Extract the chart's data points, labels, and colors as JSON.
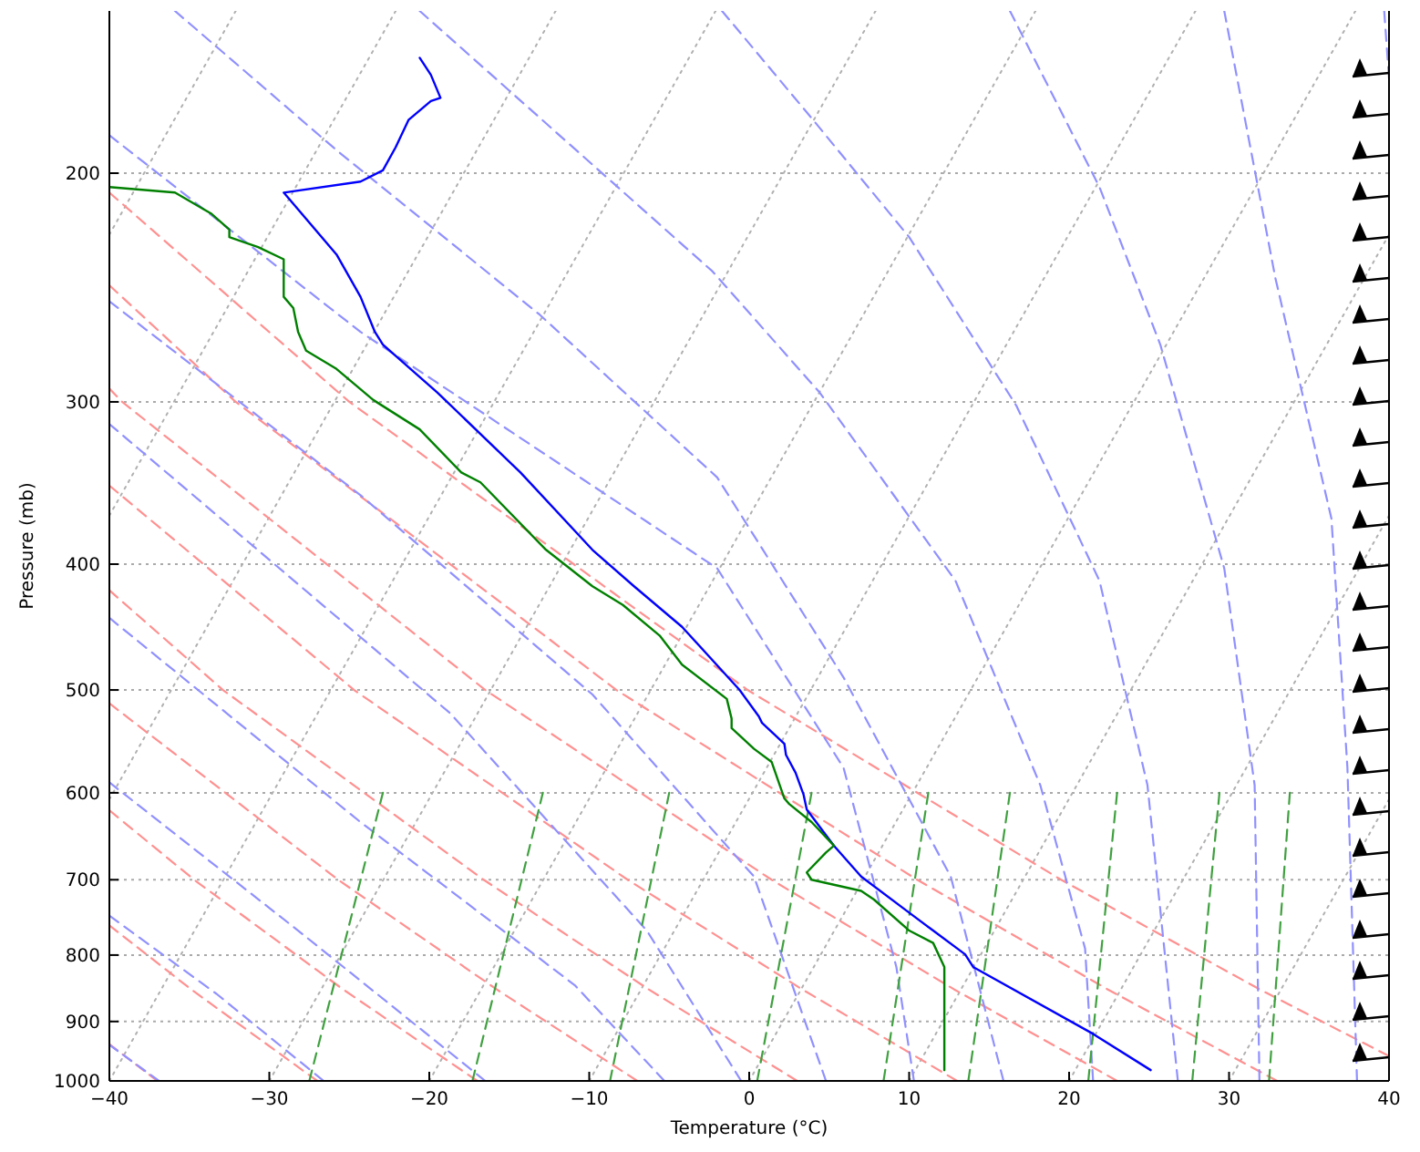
{
  "chart_data": {
    "type": "line",
    "xlabel": "Temperature (°C)",
    "ylabel": "Pressure (mb)",
    "log": "y",
    "grid": "y",
    "xlim": [
      -40,
      40
    ],
    "ylim": [
      1000,
      150
    ],
    "xticks": [
      {
        "value": -40,
        "label": "−40"
      },
      {
        "value": -30,
        "label": "−30"
      },
      {
        "value": -20,
        "label": "−20"
      },
      {
        "value": -10,
        "label": "−10"
      },
      0,
      10,
      20,
      30,
      40
    ],
    "yticks": [
      1000,
      900,
      800,
      700,
      600,
      500,
      400,
      300,
      200
    ],
    "series": [
      {
        "color": "#b0b0b0",
        "line_style": "dotted",
        "x": [
          -40,
          -32.1
        ],
        "values": [
          223,
          150
        ]
      },
      {
        "color": "#b0b0b0",
        "line_style": "dotted",
        "x": [
          -40,
          -22.1
        ],
        "values": [
          367,
          150
        ]
      },
      {
        "color": "#b0b0b0",
        "line_style": "dotted",
        "x": [
          -40,
          -12.1
        ],
        "values": [
          607,
          150
        ]
      },
      {
        "color": "#b0b0b0",
        "line_style": "dotted",
        "x": [
          -40,
          -2.1
        ],
        "values": [
          1000,
          150
        ]
      },
      {
        "color": "#b0b0b0",
        "line_style": "dotted",
        "x": [
          -30,
          7.9
        ],
        "values": [
          1000,
          150
        ]
      },
      {
        "color": "#b0b0b0",
        "line_style": "dotted",
        "x": [
          -20,
          17.9
        ],
        "values": [
          1000,
          150
        ]
      },
      {
        "color": "#b0b0b0",
        "line_style": "dotted",
        "x": [
          -10,
          27.9
        ],
        "values": [
          1000,
          150
        ]
      },
      {
        "color": "#b0b0b0",
        "line_style": "dotted",
        "x": [
          0,
          37.9
        ],
        "values": [
          1000,
          150
        ]
      },
      {
        "color": "#b0b0b0",
        "line_style": "dotted",
        "x": [
          10,
          40
        ],
        "values": [
          1000,
          223
        ]
      },
      {
        "color": "#b0b0b0",
        "line_style": "dotted",
        "x": [
          20,
          40
        ],
        "values": [
          1000,
          367
        ]
      },
      {
        "color": "#b0b0b0",
        "line_style": "dotted",
        "x": [
          30,
          40
        ],
        "values": [
          1000,
          607
        ]
      },
      {
        "color": "#ff9090",
        "line_style": "dashed",
        "x": [
          -37,
          -40
        ],
        "values": [
          1000,
          937
        ]
      },
      {
        "color": "#ff9090",
        "line_style": "dashed",
        "x": [
          -27,
          -34.9,
          -40
        ],
        "values": [
          1000,
          850,
          759
        ]
      },
      {
        "color": "#ff9090",
        "line_style": "dashed",
        "x": [
          -17,
          -25.4,
          -34.7,
          -40
        ],
        "values": [
          1000,
          850,
          700,
          619
        ]
      },
      {
        "color": "#ff9090",
        "line_style": "dashed",
        "x": [
          -7,
          -15.8,
          -25.7,
          -40
        ],
        "values": [
          1000,
          850,
          700,
          512
        ]
      },
      {
        "color": "#ff9090",
        "line_style": "dashed",
        "x": [
          3,
          -6.3,
          -16.6,
          -32.9,
          -40
        ],
        "values": [
          1000,
          850,
          700,
          500,
          419
        ]
      },
      {
        "color": "#ff9090",
        "line_style": "dashed",
        "x": [
          13,
          3.3,
          -7.6,
          -24.7,
          -40
        ],
        "values": [
          1000,
          850,
          700,
          500,
          348
        ]
      },
      {
        "color": "#ff9090",
        "line_style": "dashed",
        "x": [
          23,
          12.8,
          1.4,
          -16.5,
          -39.2,
          -40
        ],
        "values": [
          1000,
          850,
          700,
          500,
          300,
          293
        ]
      },
      {
        "color": "#ff9090",
        "line_style": "dashed",
        "x": [
          33,
          22.4,
          10.5,
          -8.3,
          -32.1,
          -40
        ],
        "values": [
          1000,
          850,
          700,
          500,
          300,
          244
        ]
      },
      {
        "color": "#ff9090",
        "line_style": "dashed",
        "x": [
          40,
          31.9,
          19.5,
          -0.1,
          -25,
          -40
        ],
        "values": [
          957,
          850,
          700,
          500,
          300,
          207
        ]
      },
      {
        "color": "#9090ff",
        "line_style": "dashed",
        "x": [
          -40,
          -36.9
        ],
        "values": [
          938,
          1000
        ]
      },
      {
        "color": "#9090ff",
        "line_style": "dashed",
        "x": [
          -40,
          -33.3,
          -26.6
        ],
        "values": [
          746,
          857,
          1000
        ]
      },
      {
        "color": "#9090ff",
        "line_style": "dashed",
        "x": [
          -40,
          -28.2,
          -16.5
        ],
        "values": [
          589,
          766,
          1000
        ]
      },
      {
        "color": "#9090ff",
        "line_style": "dashed",
        "x": [
          -40,
          -24.3,
          -10.9,
          -5.3
        ],
        "values": [
          440,
          632,
          844,
          1000
        ]
      },
      {
        "color": "#9090ff",
        "line_style": "dashed",
        "x": [
          -40,
          -18.7,
          -6.4,
          -0.5
        ],
        "values": [
          312,
          521,
          766,
          1000
        ]
      },
      {
        "color": "#9090ff",
        "line_style": "dashed",
        "x": [
          -40,
          -24.3,
          -9.8,
          0.3,
          4.8
        ],
        "values": [
          251,
          354,
          504,
          696,
          1000
        ]
      },
      {
        "color": "#9090ff",
        "line_style": "dashed",
        "x": [
          -40,
          -24.3,
          -2,
          5.9,
          9.2,
          10.3
        ],
        "values": [
          187,
          265,
          403,
          574,
          817,
          1000
        ]
      },
      {
        "color": "#9090ff",
        "line_style": "dashed",
        "x": [
          -35.9,
          -25.8,
          -13.1,
          -2,
          5.9,
          12.6,
          15.9
        ],
        "values": [
          150,
          192,
          257,
          343,
          489,
          696,
          1000
        ]
      },
      {
        "color": "#9090ff",
        "line_style": "dashed",
        "x": [
          -20.6,
          -2.3,
          4.4,
          12.9,
          18.2,
          21,
          21.5
        ],
        "values": [
          150,
          238,
          295,
          412,
          592,
          791,
          1000
        ]
      },
      {
        "color": "#9090ff",
        "line_style": "dashed",
        "x": [
          -1.7,
          4,
          10,
          16.7,
          21.9,
          24.9,
          26.8
        ],
        "values": [
          150,
          182,
          224,
          302,
          412,
          592,
          1000
        ]
      },
      {
        "color": "#9090ff",
        "line_style": "dashed",
        "x": [
          16.3,
          21.9,
          25.7,
          29.7,
          31.6,
          31.9
        ],
        "values": [
          150,
          205,
          271,
          403,
          592,
          1000
        ]
      },
      {
        "color": "#9090ff",
        "line_style": "dashed",
        "x": [
          29.7,
          32.9,
          36.4,
          37.4,
          38
        ],
        "values": [
          150,
          241,
          369,
          574,
          1000
        ]
      },
      {
        "color": "#9090ff",
        "line_style": "dashed",
        "x": [
          39.7,
          40
        ],
        "values": [
          150,
          169
        ]
      },
      {
        "color": "#40a040",
        "line_style": "dashed",
        "x": [
          -27.5,
          -22.9
        ],
        "values": [
          1000,
          600
        ]
      },
      {
        "color": "#40a040",
        "line_style": "dashed",
        "x": [
          -17.3,
          -12.9
        ],
        "values": [
          1000,
          600
        ]
      },
      {
        "color": "#40a040",
        "line_style": "dashed",
        "x": [
          -8.7,
          -5
        ],
        "values": [
          1000,
          600
        ]
      },
      {
        "color": "#40a040",
        "line_style": "dashed",
        "x": [
          0.5,
          3.9
        ],
        "values": [
          1000,
          600
        ]
      },
      {
        "color": "#40a040",
        "line_style": "dashed",
        "x": [
          8.4,
          11.2
        ],
        "values": [
          1000,
          600
        ]
      },
      {
        "color": "#40a040",
        "line_style": "dashed",
        "x": [
          13.7,
          16.3
        ],
        "values": [
          1000,
          600
        ]
      },
      {
        "color": "#40a040",
        "line_style": "dashed",
        "x": [
          21.2,
          23
        ],
        "values": [
          1000,
          600
        ]
      },
      {
        "color": "#40a040",
        "line_style": "dashed",
        "x": [
          27.7,
          29.4
        ],
        "values": [
          1000,
          600
        ]
      },
      {
        "color": "#40a040",
        "line_style": "dashed",
        "x": [
          32.5,
          33.8
        ],
        "values": [
          1000,
          600
        ]
      },
      {
        "color": "#0000ff",
        "line_style": "solid",
        "x": [
          25.1,
          21.5,
          14,
          13.5,
          11.5,
          10,
          7,
          5.3,
          3.6,
          3.4,
          2.9,
          2.3,
          2.2,
          0.8,
          0.6,
          -0.6,
          -4.2,
          -7.2,
          -9.8,
          -14.3,
          -19.5,
          -22.9,
          -23.4,
          -24.3,
          -25.8,
          -29.1,
          -24.3,
          -22.9,
          -22.1,
          -21.3,
          -19.9,
          -19.3,
          -19.9,
          -20.6
        ],
        "values": [
          981,
          920,
          817,
          799,
          766,
          742,
          696,
          659,
          618,
          602,
          579,
          561,
          550,
          530,
          524,
          500,
          447,
          416,
          390,
          340,
          295,
          271,
          265,
          249,
          231,
          207,
          203,
          199,
          191,
          182,
          176,
          175,
          168,
          163
        ]
      },
      {
        "color": "#008000",
        "line_style": "solid",
        "x": [
          12.2,
          12.2,
          11.5,
          10,
          7.8,
          7,
          3.9,
          3.6,
          4.8,
          5.3,
          3.9,
          2.5,
          2.2,
          1.4,
          0.3,
          -1.1,
          -1.1,
          -1.4,
          -4.2,
          -5.6,
          -7.9,
          -9.8,
          -12.7,
          -16.8,
          -18,
          -20.6,
          -23.5,
          -25.8,
          -27.7,
          -28.2,
          -28.5,
          -29.1,
          -29.1,
          -30.7,
          -32.5,
          -32.5,
          -33.6,
          -35.9,
          -40
        ],
        "values": [
          981,
          817,
          783,
          766,
          725,
          714,
          700,
          691,
          667,
          659,
          632,
          612,
          606,
          568,
          555,
          535,
          526,
          508,
          478,
          454,
          430,
          416,
          390,
          346,
          340,
          315,
          299,
          283,
          274,
          265,
          254,
          249,
          233,
          228,
          224,
          221,
          215,
          207,
          205
        ]
      }
    ]
  }
}
